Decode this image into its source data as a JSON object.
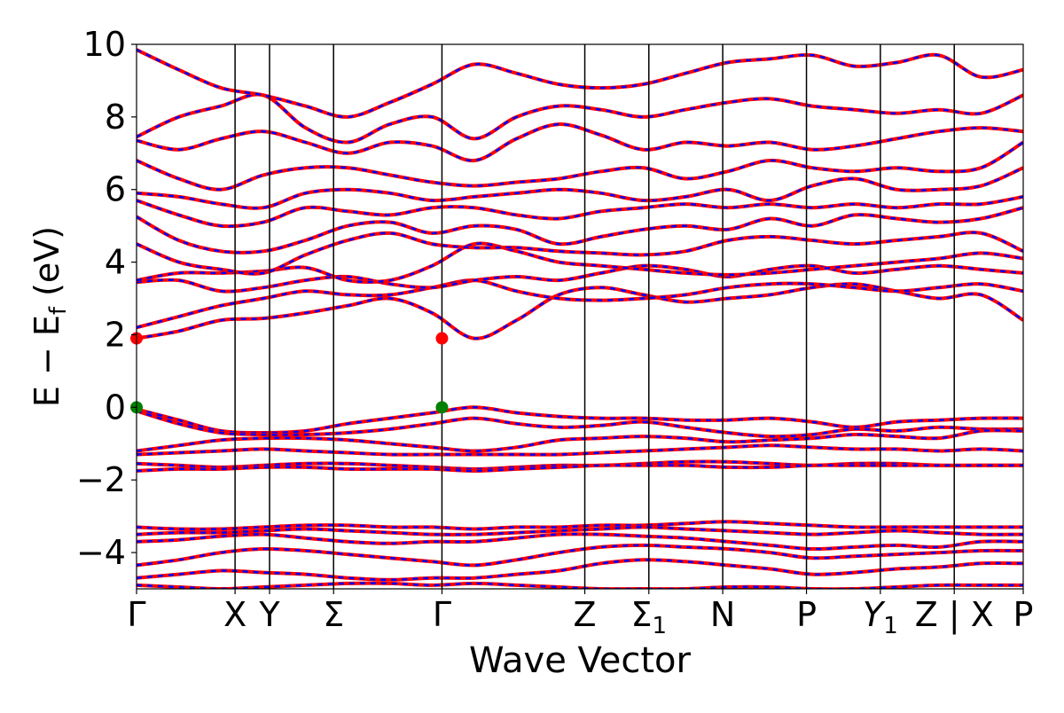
{
  "chart_data": {
    "type": "line",
    "title": "",
    "xlabel": "Wave Vector",
    "ylabel_main": "E − E",
    "ylabel_sub": "f",
    "ylabel_unit": " (eV)",
    "ylim": [
      -5,
      10
    ],
    "yticks": [
      10,
      8,
      6,
      4,
      2,
      0,
      -2,
      -4
    ],
    "ytick_labels": [
      "10",
      "8",
      "6",
      "4",
      "2",
      "0",
      "−2",
      "−4"
    ],
    "xrange": [
      0,
      9.0
    ],
    "kpoints": [
      {
        "x": 0.0,
        "label": "Γ"
      },
      {
        "x": 1.0,
        "label": "X"
      },
      {
        "x": 1.35,
        "label": "Y"
      },
      {
        "x": 2.0,
        "label": "Σ"
      },
      {
        "x": 3.1,
        "label": "Γ"
      },
      {
        "x": 4.55,
        "label": "Z"
      },
      {
        "x": 5.2,
        "label": "Σ",
        "sub": "1"
      },
      {
        "x": 5.95,
        "label": "N"
      },
      {
        "x": 6.8,
        "label": "P"
      },
      {
        "x": 7.55,
        "label": "Y",
        "sub": "1"
      },
      {
        "x": 8.3,
        "label": "Z | X"
      },
      {
        "x": 9.0,
        "label": "P"
      }
    ],
    "grid": false,
    "legend": "none",
    "series_styles": [
      {
        "role": "band",
        "color": "#ff0000",
        "style": "solid"
      },
      {
        "role": "band-overlay",
        "color": "#0000ff",
        "style": "dashed"
      }
    ],
    "markers": [
      {
        "x": 0.0,
        "y": 1.9,
        "color": "#ff0000"
      },
      {
        "x": 3.1,
        "y": 1.9,
        "color": "#ff0000"
      },
      {
        "x": 0.0,
        "y": 0.0,
        "color": "#008000"
      },
      {
        "x": 3.1,
        "y": 0.0,
        "color": "#008000"
      }
    ],
    "bands": [
      [
        -0.05,
        -0.35,
        -0.65,
        -0.7,
        -0.65,
        -0.45,
        -0.3,
        -0.15,
        0.0,
        -0.15,
        -0.25,
        -0.3,
        -0.3,
        -0.35,
        -0.35,
        -0.3,
        -0.4,
        -0.55,
        -0.4,
        -0.35,
        -0.3,
        -0.3
      ],
      [
        -0.1,
        -0.45,
        -0.7,
        -0.75,
        -0.75,
        -0.7,
        -0.6,
        -0.45,
        -0.3,
        -0.45,
        -0.55,
        -0.5,
        -0.4,
        -0.55,
        -0.7,
        -0.8,
        -0.75,
        -0.6,
        -0.65,
        -0.55,
        -0.6,
        -0.6
      ],
      [
        -1.2,
        -1.05,
        -0.9,
        -0.85,
        -0.85,
        -0.9,
        -1.0,
        -1.1,
        -1.2,
        -1.1,
        -0.9,
        -0.85,
        -0.8,
        -0.85,
        -0.95,
        -0.9,
        -0.85,
        -0.75,
        -0.8,
        -0.85,
        -0.65,
        -0.65
      ],
      [
        -1.3,
        -1.25,
        -1.2,
        -1.15,
        -1.2,
        -1.25,
        -1.3,
        -1.3,
        -1.3,
        -1.3,
        -1.3,
        -1.25,
        -1.2,
        -1.15,
        -1.1,
        -1.05,
        -1.1,
        -1.15,
        -1.15,
        -1.2,
        -1.15,
        -1.2
      ],
      [
        -1.55,
        -1.6,
        -1.65,
        -1.6,
        -1.55,
        -1.55,
        -1.6,
        -1.65,
        -1.7,
        -1.65,
        -1.6,
        -1.6,
        -1.55,
        -1.5,
        -1.5,
        -1.55,
        -1.6,
        -1.55,
        -1.55,
        -1.6,
        -1.6,
        -1.6
      ],
      [
        -1.75,
        -1.7,
        -1.7,
        -1.65,
        -1.65,
        -1.7,
        -1.7,
        -1.7,
        -1.75,
        -1.7,
        -1.65,
        -1.6,
        -1.6,
        -1.6,
        -1.65,
        -1.65,
        -1.6,
        -1.6,
        -1.6,
        -1.6,
        -1.6,
        -1.6
      ],
      [
        -3.3,
        -3.35,
        -3.35,
        -3.3,
        -3.25,
        -3.25,
        -3.3,
        -3.3,
        -3.35,
        -3.3,
        -3.3,
        -3.25,
        -3.25,
        -3.2,
        -3.15,
        -3.2,
        -3.25,
        -3.3,
        -3.3,
        -3.3,
        -3.3,
        -3.3
      ],
      [
        -3.5,
        -3.45,
        -3.45,
        -3.4,
        -3.35,
        -3.4,
        -3.45,
        -3.5,
        -3.5,
        -3.45,
        -3.4,
        -3.35,
        -3.3,
        -3.35,
        -3.4,
        -3.45,
        -3.5,
        -3.45,
        -3.4,
        -3.45,
        -3.5,
        -3.5
      ],
      [
        -3.7,
        -3.65,
        -3.55,
        -3.5,
        -3.6,
        -3.7,
        -3.75,
        -3.7,
        -3.7,
        -3.6,
        -3.5,
        -3.5,
        -3.55,
        -3.6,
        -3.7,
        -3.8,
        -3.9,
        -3.85,
        -3.8,
        -3.85,
        -3.7,
        -3.7
      ],
      [
        -4.35,
        -4.2,
        -4.0,
        -3.9,
        -3.95,
        -4.05,
        -4.15,
        -4.25,
        -4.35,
        -4.2,
        -4.0,
        -3.85,
        -3.8,
        -3.85,
        -3.9,
        -4.0,
        -4.15,
        -4.1,
        -4.05,
        -4.0,
        -3.95,
        -3.95
      ],
      [
        -4.7,
        -4.6,
        -4.5,
        -4.55,
        -4.6,
        -4.7,
        -4.75,
        -4.7,
        -4.7,
        -4.6,
        -4.5,
        -4.3,
        -4.2,
        -4.25,
        -4.35,
        -4.45,
        -4.6,
        -4.55,
        -4.45,
        -4.4,
        -4.3,
        -4.3
      ],
      [
        -4.9,
        -4.95,
        -5.0,
        -4.95,
        -4.9,
        -4.85,
        -4.85,
        -4.9,
        -4.85,
        -4.9,
        -4.95,
        -5.0,
        -5.0,
        -5.0,
        -4.95,
        -4.95,
        -5.0,
        -5.0,
        -4.95,
        -4.9,
        -4.9,
        -4.9
      ],
      [
        1.9,
        2.1,
        2.4,
        2.45,
        2.6,
        2.8,
        3.0,
        2.6,
        1.9,
        2.4,
        3.1,
        3.3,
        3.1,
        2.9,
        3.0,
        3.1,
        3.3,
        3.4,
        3.2,
        3.0,
        3.1,
        2.4
      ],
      [
        2.2,
        2.5,
        2.8,
        3.0,
        3.2,
        3.1,
        3.1,
        3.3,
        3.5,
        3.2,
        3.0,
        2.95,
        3.0,
        3.1,
        3.3,
        3.4,
        3.4,
        3.3,
        3.2,
        3.3,
        3.4,
        3.2
      ],
      [
        3.45,
        3.5,
        3.2,
        3.3,
        3.5,
        3.6,
        3.4,
        3.3,
        3.5,
        3.6,
        3.5,
        3.7,
        3.9,
        3.8,
        3.6,
        3.8,
        3.9,
        3.7,
        3.8,
        3.9,
        3.8,
        3.7
      ],
      [
        3.5,
        3.7,
        3.7,
        3.75,
        3.85,
        3.5,
        3.5,
        3.9,
        4.5,
        4.3,
        4.0,
        3.9,
        3.8,
        3.7,
        3.65,
        3.7,
        3.8,
        3.9,
        4.0,
        4.1,
        4.25,
        4.1
      ],
      [
        4.5,
        4.0,
        3.8,
        3.7,
        4.2,
        4.6,
        4.8,
        4.5,
        4.4,
        4.4,
        4.3,
        4.25,
        4.2,
        4.3,
        4.6,
        4.7,
        4.6,
        4.5,
        4.6,
        4.7,
        4.8,
        4.3
      ],
      [
        5.25,
        4.6,
        4.3,
        4.3,
        4.6,
        5.0,
        5.1,
        4.8,
        5.0,
        4.9,
        4.5,
        4.7,
        4.9,
        5.0,
        4.9,
        5.2,
        5.0,
        5.3,
        5.2,
        5.1,
        5.2,
        5.5
      ],
      [
        5.7,
        5.3,
        5.0,
        5.1,
        5.5,
        5.4,
        5.3,
        5.5,
        5.5,
        5.3,
        5.2,
        5.4,
        5.5,
        5.6,
        5.5,
        5.6,
        5.5,
        5.6,
        5.5,
        5.6,
        5.6,
        5.8
      ],
      [
        5.9,
        5.8,
        5.6,
        5.5,
        5.9,
        6.0,
        5.9,
        5.7,
        5.8,
        5.9,
        6.0,
        5.9,
        5.7,
        5.8,
        6.0,
        5.7,
        6.1,
        6.3,
        6.0,
        6.0,
        6.1,
        6.6
      ],
      [
        6.8,
        6.3,
        6.0,
        6.4,
        6.6,
        6.6,
        6.4,
        6.2,
        6.1,
        6.2,
        6.3,
        6.5,
        6.6,
        6.3,
        6.5,
        6.8,
        6.6,
        6.5,
        6.6,
        6.5,
        6.6,
        7.3
      ],
      [
        7.35,
        7.1,
        7.4,
        7.6,
        7.3,
        7.0,
        7.3,
        7.2,
        6.8,
        7.4,
        7.8,
        7.5,
        7.1,
        7.3,
        7.2,
        7.3,
        7.1,
        7.2,
        7.4,
        7.6,
        7.7,
        7.6
      ],
      [
        7.45,
        8.0,
        8.3,
        8.6,
        7.7,
        7.3,
        7.8,
        8.0,
        7.4,
        8.0,
        8.3,
        8.2,
        8.0,
        8.2,
        8.4,
        8.5,
        8.3,
        8.2,
        8.1,
        8.2,
        8.1,
        8.6
      ],
      [
        9.85,
        9.3,
        8.8,
        8.6,
        8.3,
        8.0,
        8.4,
        8.9,
        9.45,
        9.2,
        8.9,
        8.8,
        8.9,
        9.2,
        9.5,
        9.6,
        9.7,
        9.4,
        9.5,
        9.7,
        9.1,
        9.3
      ]
    ]
  }
}
